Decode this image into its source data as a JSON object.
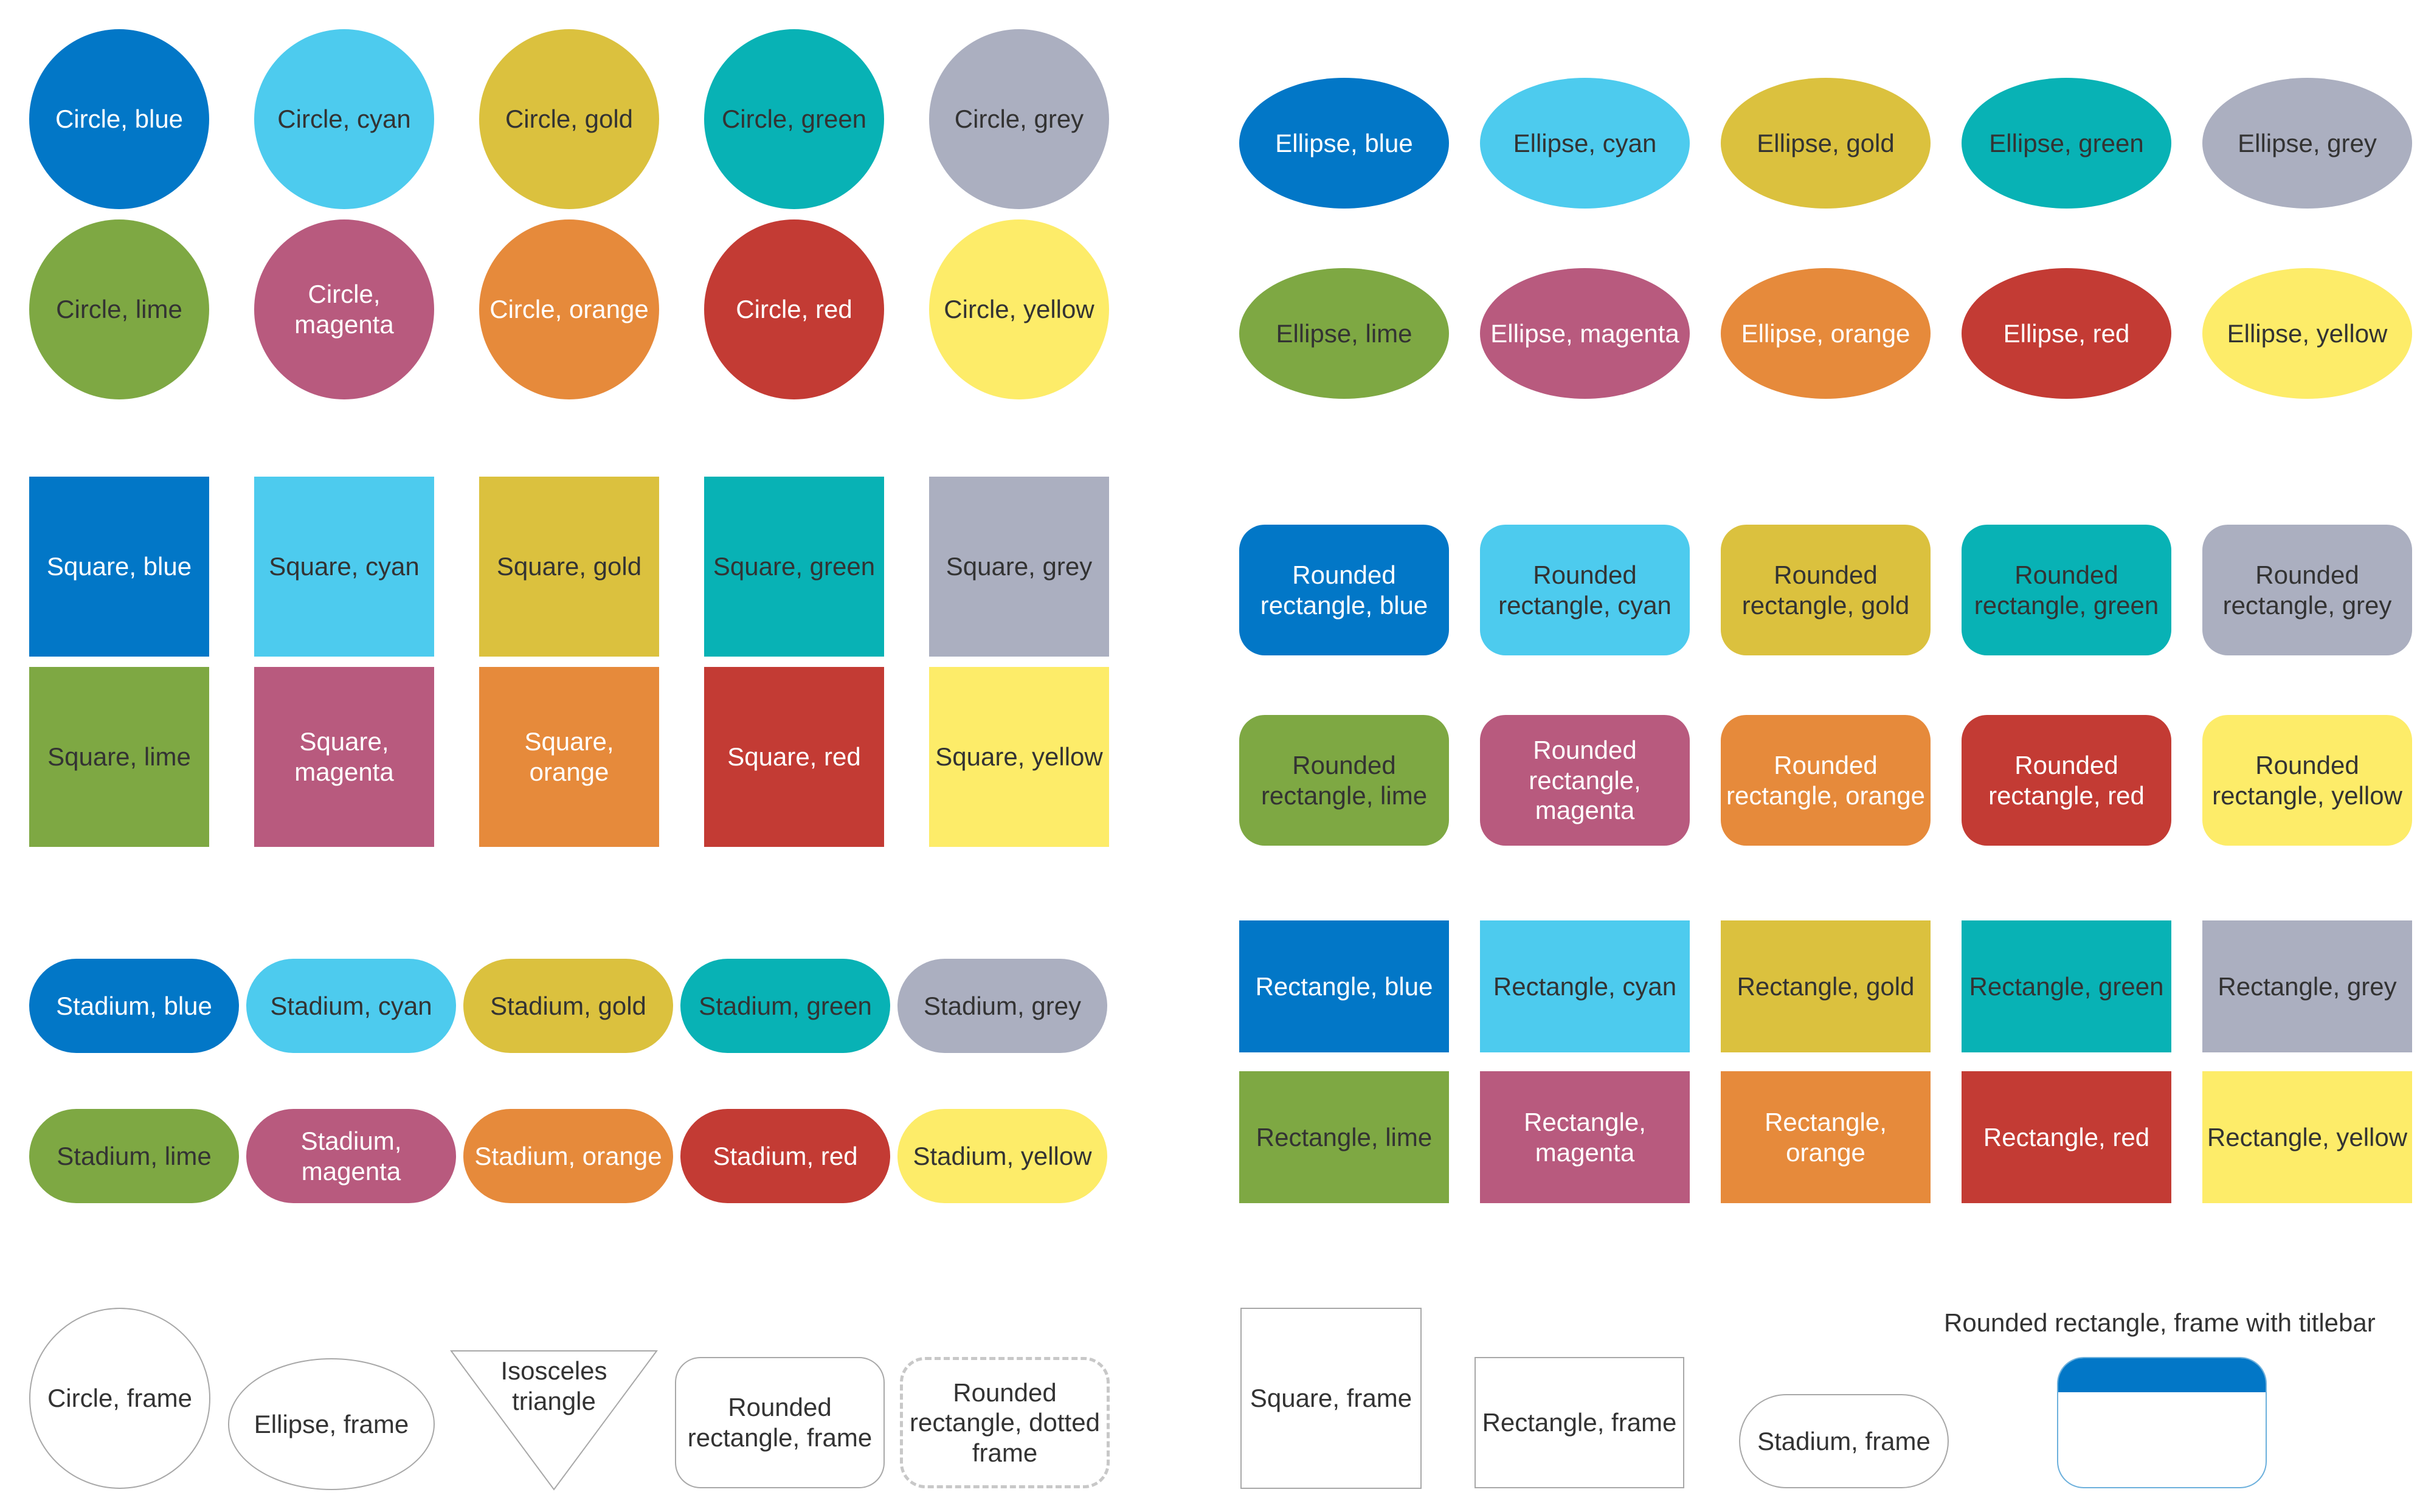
{
  "colors": {
    "blue": "#0277c7",
    "cyan": "#4dcbee",
    "gold": "#dbc13e",
    "green": "#08b2b5",
    "grey": "#abafc0",
    "lime": "#7ea843",
    "magenta": "#b85a7e",
    "orange": "#e68a3b",
    "red": "#c33b34",
    "yellow": "#fdec69",
    "frame_border": "#a8a8a8",
    "dotted_border": "#c8c8c8",
    "titlebar": "#0277c7"
  },
  "circles": [
    {
      "label": "Circle, blue",
      "color": "blue"
    },
    {
      "label": "Circle, cyan",
      "color": "cyan"
    },
    {
      "label": "Circle, gold",
      "color": "gold"
    },
    {
      "label": "Circle, green",
      "color": "green"
    },
    {
      "label": "Circle, grey",
      "color": "grey"
    },
    {
      "label": "Circle, lime",
      "color": "lime"
    },
    {
      "label": "Circle, magenta",
      "color": "magenta"
    },
    {
      "label": "Circle, orange",
      "color": "orange"
    },
    {
      "label": "Circle, red",
      "color": "red"
    },
    {
      "label": "Circle, yellow",
      "color": "yellow"
    }
  ],
  "ellipses": [
    {
      "label": "Ellipse, blue",
      "color": "blue"
    },
    {
      "label": "Ellipse, cyan",
      "color": "cyan"
    },
    {
      "label": "Ellipse, gold",
      "color": "gold"
    },
    {
      "label": "Ellipse, green",
      "color": "green"
    },
    {
      "label": "Ellipse, grey",
      "color": "grey"
    },
    {
      "label": "Ellipse, lime",
      "color": "lime"
    },
    {
      "label": "Ellipse, magenta",
      "color": "magenta"
    },
    {
      "label": "Ellipse, orange",
      "color": "orange"
    },
    {
      "label": "Ellipse, red",
      "color": "red"
    },
    {
      "label": "Ellipse, yellow",
      "color": "yellow"
    }
  ],
  "squares": [
    {
      "label": "Square, blue",
      "color": "blue"
    },
    {
      "label": "Square, cyan",
      "color": "cyan"
    },
    {
      "label": "Square, gold",
      "color": "gold"
    },
    {
      "label": "Square, green",
      "color": "green"
    },
    {
      "label": "Square, grey",
      "color": "grey"
    },
    {
      "label": "Square, lime",
      "color": "lime"
    },
    {
      "label": "Square, magenta",
      "color": "magenta"
    },
    {
      "label": "Square, orange",
      "color": "orange"
    },
    {
      "label": "Square, red",
      "color": "red"
    },
    {
      "label": "Square, yellow",
      "color": "yellow"
    }
  ],
  "rounded_rectangles": [
    {
      "label": "Rounded rectangle, blue",
      "color": "blue"
    },
    {
      "label": "Rounded rectangle, cyan",
      "color": "cyan"
    },
    {
      "label": "Rounded rectangle, gold",
      "color": "gold"
    },
    {
      "label": "Rounded rectangle, green",
      "color": "green"
    },
    {
      "label": "Rounded rectangle, grey",
      "color": "grey"
    },
    {
      "label": "Rounded rectangle, lime",
      "color": "lime"
    },
    {
      "label": "Rounded rectangle, magenta",
      "color": "magenta"
    },
    {
      "label": "Rounded rectangle, orange",
      "color": "orange"
    },
    {
      "label": "Rounded rectangle, red",
      "color": "red"
    },
    {
      "label": "Rounded rectangle, yellow",
      "color": "yellow"
    }
  ],
  "stadiums": [
    {
      "label": "Stadium, blue",
      "color": "blue"
    },
    {
      "label": "Stadium, cyan",
      "color": "cyan"
    },
    {
      "label": "Stadium, gold",
      "color": "gold"
    },
    {
      "label": "Stadium, green",
      "color": "green"
    },
    {
      "label": "Stadium, grey",
      "color": "grey"
    },
    {
      "label": "Stadium, lime",
      "color": "lime"
    },
    {
      "label": "Stadium, magenta",
      "color": "magenta"
    },
    {
      "label": "Stadium, orange",
      "color": "orange"
    },
    {
      "label": "Stadium, red",
      "color": "red"
    },
    {
      "label": "Stadium, yellow",
      "color": "yellow"
    }
  ],
  "rectangles": [
    {
      "label": "Rectangle, blue",
      "color": "blue"
    },
    {
      "label": "Rectangle, cyan",
      "color": "cyan"
    },
    {
      "label": "Rectangle, gold",
      "color": "gold"
    },
    {
      "label": "Rectangle, green",
      "color": "green"
    },
    {
      "label": "Rectangle, grey",
      "color": "grey"
    },
    {
      "label": "Rectangle, lime",
      "color": "lime"
    },
    {
      "label": "Rectangle, magenta",
      "color": "magenta"
    },
    {
      "label": "Rectangle, orange",
      "color": "orange"
    },
    {
      "label": "Rectangle, red",
      "color": "red"
    },
    {
      "label": "Rectangle, yellow",
      "color": "yellow"
    }
  ],
  "frames": {
    "circle": "Circle, frame",
    "ellipse": "Ellipse, frame",
    "triangle": "Isosceles triangle",
    "rounded_rectangle": "Rounded rectangle, frame",
    "rounded_rectangle_dotted": "Rounded rectangle, dotted frame",
    "square": "Square, frame",
    "rectangle": "Rectangle, frame",
    "stadium": "Stadium, frame",
    "titlebar_caption": "Rounded rectangle, frame with titlebar"
  }
}
